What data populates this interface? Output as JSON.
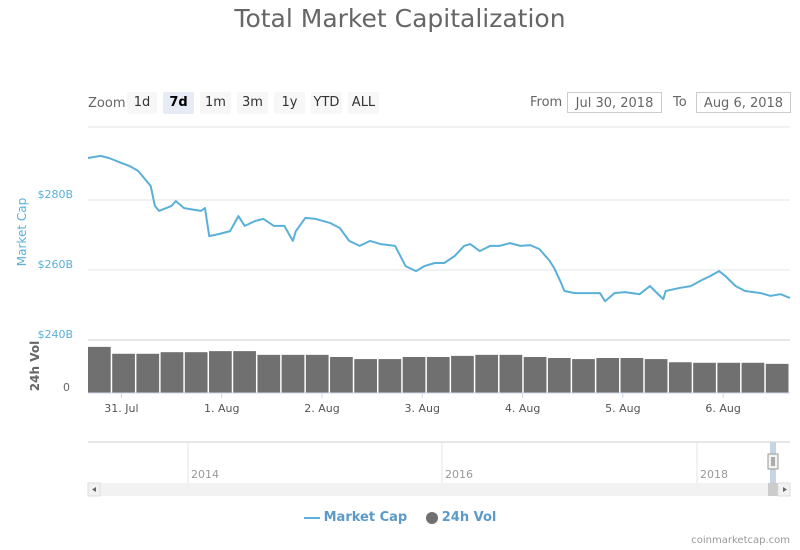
{
  "chart_data": {
    "type": "line",
    "title": "Total Market Capitalization",
    "range_selector": {
      "label": "Zoom",
      "buttons": [
        "1d",
        "7d",
        "1m",
        "3m",
        "1y",
        "YTD",
        "ALL"
      ],
      "selected": "7d",
      "from_label": "From",
      "from_value": "Jul 30, 2018",
      "to_label": "To",
      "to_value": "Aug 6, 2018"
    },
    "x_ticks": [
      "31. Jul",
      "1. Aug",
      "2. Aug",
      "3. Aug",
      "4. Aug",
      "5. Aug",
      "6. Aug"
    ],
    "x_range": [
      "2018-07-30T16:00",
      "2018-08-06T16:00"
    ],
    "y_axis": {
      "label": "Market Cap",
      "ticks": [
        "$240B",
        "$260B",
        "$280B"
      ],
      "ylim": [
        240,
        300
      ],
      "unit": "B USD",
      "color": "#5ab0d8"
    },
    "volume_axis": {
      "label": "24h Vol",
      "ticks": [
        "0"
      ]
    },
    "grid": true,
    "series": [
      {
        "name": "Market Cap",
        "type": "line",
        "color": "#5ab0d8",
        "points": [
          [
            "2018-07-30T16:00",
            292.0
          ],
          [
            "2018-07-30T19:00",
            292.6
          ],
          [
            "2018-07-30T21:00",
            292.0
          ],
          [
            "2018-07-31T00:00",
            290.6
          ],
          [
            "2018-07-31T02:00",
            289.7
          ],
          [
            "2018-07-31T04:00",
            288.3
          ],
          [
            "2018-07-31T07:00",
            284.0
          ],
          [
            "2018-07-31T08:00",
            278.3
          ],
          [
            "2018-07-31T09:00",
            276.9
          ],
          [
            "2018-07-31T12:00",
            278.3
          ],
          [
            "2018-07-31T13:00",
            279.7
          ],
          [
            "2018-07-31T15:00",
            277.7
          ],
          [
            "2018-07-31T19:00",
            276.9
          ],
          [
            "2018-07-31T20:00",
            277.7
          ],
          [
            "2018-07-31T21:00",
            269.7
          ],
          [
            "2018-07-31T23:30",
            270.3
          ],
          [
            "2018-08-01T02:00",
            271.1
          ],
          [
            "2018-08-01T04:00",
            275.4
          ],
          [
            "2018-08-01T05:30",
            272.6
          ],
          [
            "2018-08-01T08:00",
            274.0
          ],
          [
            "2018-08-01T10:00",
            274.6
          ],
          [
            "2018-08-01T12:30",
            272.6
          ],
          [
            "2018-08-01T15:00",
            272.6
          ],
          [
            "2018-08-01T17:00",
            268.3
          ],
          [
            "2018-08-01T17:45",
            271.1
          ],
          [
            "2018-08-01T20:00",
            274.9
          ],
          [
            "2018-08-01T22:30",
            274.6
          ],
          [
            "2018-08-02T02:00",
            273.4
          ],
          [
            "2018-08-02T04:15",
            272.0
          ],
          [
            "2018-08-02T06:30",
            268.3
          ],
          [
            "2018-08-02T09:00",
            266.9
          ],
          [
            "2018-08-02T11:30",
            268.3
          ],
          [
            "2018-08-02T14:00",
            267.4
          ],
          [
            "2018-08-02T17:30",
            266.9
          ],
          [
            "2018-08-02T20:00",
            261.1
          ],
          [
            "2018-08-02T22:30",
            259.7
          ],
          [
            "2018-08-03T00:30",
            261.1
          ],
          [
            "2018-08-03T03:00",
            262.0
          ],
          [
            "2018-08-03T05:15",
            262.0
          ],
          [
            "2018-08-03T07:45",
            264.0
          ],
          [
            "2018-08-03T10:00",
            266.9
          ],
          [
            "2018-08-03T11:30",
            267.4
          ],
          [
            "2018-08-03T13:45",
            265.4
          ],
          [
            "2018-08-03T16:15",
            266.9
          ],
          [
            "2018-08-03T18:30",
            266.9
          ],
          [
            "2018-08-03T21:00",
            267.7
          ],
          [
            "2018-08-03T23:30",
            266.9
          ],
          [
            "2018-08-04T01:45",
            267.1
          ],
          [
            "2018-08-04T04:00",
            266.0
          ],
          [
            "2018-08-04T06:30",
            262.6
          ],
          [
            "2018-08-04T07:40",
            260.3
          ],
          [
            "2018-08-04T09:00",
            256.9
          ],
          [
            "2018-08-04T10:00",
            254.0
          ],
          [
            "2018-08-04T12:30",
            253.4
          ],
          [
            "2018-08-04T16:00",
            253.4
          ],
          [
            "2018-08-04T18:30",
            253.4
          ],
          [
            "2018-08-04T19:45",
            251.1
          ],
          [
            "2018-08-04T22:00",
            253.4
          ],
          [
            "2018-08-05T00:30",
            253.7
          ],
          [
            "2018-08-05T04:00",
            253.1
          ],
          [
            "2018-08-05T06:30",
            255.4
          ],
          [
            "2018-08-05T07:40",
            254.0
          ],
          [
            "2018-08-05T09:40",
            251.7
          ],
          [
            "2018-08-05T10:15",
            254.0
          ],
          [
            "2018-08-05T13:45",
            254.9
          ],
          [
            "2018-08-05T16:15",
            255.4
          ],
          [
            "2018-08-05T18:30",
            256.9
          ],
          [
            "2018-08-05T21:00",
            258.3
          ],
          [
            "2018-08-05T23:00",
            259.7
          ],
          [
            "2018-08-06T00:30",
            258.3
          ],
          [
            "2018-08-06T03:00",
            255.4
          ],
          [
            "2018-08-06T05:15",
            254.0
          ],
          [
            "2018-08-06T09:00",
            253.4
          ],
          [
            "2018-08-06T11:20",
            252.6
          ],
          [
            "2018-08-06T13:45",
            253.1
          ],
          [
            "2018-08-06T16:00",
            252.0
          ]
        ]
      },
      {
        "name": "24h Vol",
        "type": "column",
        "color": "#707070",
        "scale": "relative",
        "points": [
          [
            "2018-07-30T16:00",
            0.87
          ],
          [
            "2018-07-30T22:00",
            0.74
          ],
          [
            "2018-07-31T04:00",
            0.74
          ],
          [
            "2018-07-31T10:00",
            0.77
          ],
          [
            "2018-07-31T16:00",
            0.77
          ],
          [
            "2018-07-31T22:00",
            0.79
          ],
          [
            "2018-08-01T04:00",
            0.79
          ],
          [
            "2018-08-01T10:00",
            0.72
          ],
          [
            "2018-08-01T16:00",
            0.72
          ],
          [
            "2018-08-01T22:00",
            0.72
          ],
          [
            "2018-08-02T04:00",
            0.68
          ],
          [
            "2018-08-02T10:00",
            0.64
          ],
          [
            "2018-08-02T16:00",
            0.64
          ],
          [
            "2018-08-02T22:00",
            0.68
          ],
          [
            "2018-08-03T04:00",
            0.68
          ],
          [
            "2018-08-03T10:00",
            0.7
          ],
          [
            "2018-08-03T16:00",
            0.72
          ],
          [
            "2018-08-03T22:00",
            0.72
          ],
          [
            "2018-08-04T04:00",
            0.68
          ],
          [
            "2018-08-04T10:00",
            0.66
          ],
          [
            "2018-08-04T16:00",
            0.64
          ],
          [
            "2018-08-04T22:00",
            0.66
          ],
          [
            "2018-08-05T04:00",
            0.66
          ],
          [
            "2018-08-05T10:00",
            0.64
          ],
          [
            "2018-08-05T16:00",
            0.58
          ],
          [
            "2018-08-05T22:00",
            0.57
          ],
          [
            "2018-08-06T04:00",
            0.57
          ],
          [
            "2018-08-06T10:00",
            0.57
          ],
          [
            "2018-08-06T16:00",
            0.55
          ]
        ]
      }
    ],
    "navigator": {
      "year_ticks": [
        "2014",
        "2016",
        "2018"
      ]
    },
    "legend": {
      "position": "bottom",
      "items": [
        "Market Cap",
        "24h Vol"
      ]
    },
    "credits": "coinmarketcap.com"
  }
}
